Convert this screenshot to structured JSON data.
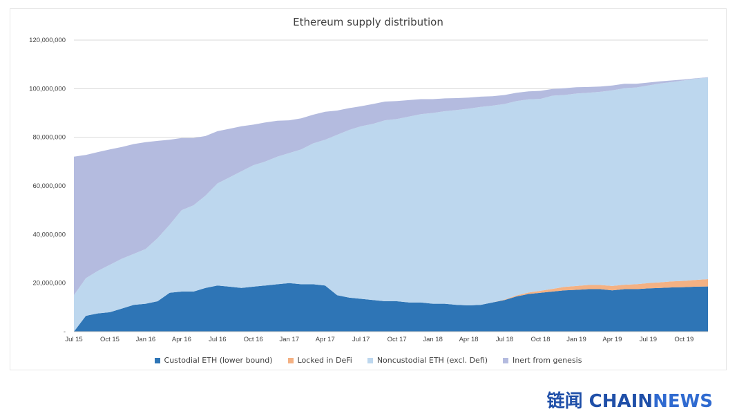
{
  "chart_data": {
    "type": "area",
    "stacked": true,
    "title": "Ethereum supply distribution",
    "xlabel": "",
    "ylabel": "",
    "ylim": [
      0,
      120000000
    ],
    "y_ticks": [
      "-",
      "20,000,000",
      "40,000,000",
      "60,000,000",
      "80,000,000",
      "100,000,000",
      "120,000,000"
    ],
    "x_ticks": [
      "Jul 15",
      "Oct 15",
      "Jan 16",
      "Apr 16",
      "Jul 16",
      "Oct 16",
      "Jan 17",
      "Apr 17",
      "Jul 17",
      "Oct 17",
      "Jan 18",
      "Apr 18",
      "Jul 18",
      "Oct 18",
      "Jan 19",
      "Apr 19",
      "Jul 19",
      "Oct 19"
    ],
    "grid": "horizontal",
    "legend_position": "bottom",
    "x": [
      "Jul 15",
      "Aug 15",
      "Sep 15",
      "Oct 15",
      "Nov 15",
      "Dec 15",
      "Jan 16",
      "Feb 16",
      "Mar 16",
      "Apr 16",
      "May 16",
      "Jun 16",
      "Jul 16",
      "Aug 16",
      "Sep 16",
      "Oct 16",
      "Nov 16",
      "Dec 16",
      "Jan 17",
      "Feb 17",
      "Mar 17",
      "Apr 17",
      "May 17",
      "Jun 17",
      "Jul 17",
      "Aug 17",
      "Sep 17",
      "Oct 17",
      "Nov 17",
      "Dec 17",
      "Jan 18",
      "Feb 18",
      "Mar 18",
      "Apr 18",
      "May 18",
      "Jun 18",
      "Jul 18",
      "Aug 18",
      "Sep 18",
      "Oct 18",
      "Nov 18",
      "Dec 18",
      "Jan 19",
      "Feb 19",
      "Mar 19",
      "Apr 19",
      "May 19",
      "Jun 19",
      "Jul 19",
      "Aug 19",
      "Sep 19",
      "Oct 19",
      "Nov 19",
      "Dec 19"
    ],
    "series": [
      {
        "name": "Custodial ETH (lower bound)",
        "color": "#2e75b6",
        "values": [
          0,
          6500000,
          7500000,
          8000000,
          9500000,
          11000000,
          11500000,
          12500000,
          16000000,
          16500000,
          16500000,
          18000000,
          19000000,
          18500000,
          18000000,
          18500000,
          19000000,
          19500000,
          20000000,
          19500000,
          19500000,
          19000000,
          15000000,
          14000000,
          13500000,
          13000000,
          12500000,
          12500000,
          12000000,
          12000000,
          11500000,
          11500000,
          11000000,
          10800000,
          11000000,
          12000000,
          13000000,
          14500000,
          15500000,
          16000000,
          16500000,
          17000000,
          17200000,
          17500000,
          17500000,
          17000000,
          17500000,
          17500000,
          17800000,
          18000000,
          18200000,
          18300000,
          18500000,
          18600000
        ]
      },
      {
        "name": "Locked in DeFi",
        "color": "#f4b183",
        "values": [
          0,
          0,
          0,
          0,
          0,
          0,
          0,
          0,
          0,
          0,
          0,
          0,
          0,
          0,
          0,
          0,
          0,
          0,
          0,
          0,
          0,
          0,
          0,
          0,
          0,
          0,
          0,
          0,
          0,
          0,
          0,
          0,
          0,
          0,
          0,
          0,
          200000,
          400000,
          600000,
          800000,
          1100000,
          1400000,
          1600000,
          1700000,
          1700000,
          1800000,
          1800000,
          2000000,
          2200000,
          2300000,
          2500000,
          2600000,
          2800000,
          3000000
        ]
      },
      {
        "name": "Noncustodial ETH (excl. Defi)",
        "color": "#bdd7ee",
        "values": [
          15000000,
          15500000,
          17500000,
          19500000,
          20500000,
          21000000,
          22500000,
          26000000,
          28000000,
          33500000,
          35500000,
          38000000,
          42000000,
          45000000,
          48000000,
          50000000,
          51000000,
          52500000,
          53500000,
          55500000,
          58000000,
          60000000,
          66000000,
          69000000,
          71000000,
          72500000,
          74500000,
          75000000,
          76500000,
          77500000,
          78500000,
          79200000,
          80200000,
          81000000,
          81500000,
          81000000,
          80500000,
          80000000,
          79500000,
          79000000,
          79500000,
          79000000,
          79200000,
          79100000,
          79500000,
          80500000,
          80900000,
          81000000,
          81300000,
          81800000,
          82000000,
          82500000,
          82800000,
          83000000
        ]
      },
      {
        "name": "Inert from genesis",
        "color": "#b4bbdf",
        "values": [
          57000000,
          50700000,
          48900000,
          47500000,
          46000000,
          45200000,
          44000000,
          40000000,
          35000000,
          29700000,
          27700000,
          24500000,
          21500000,
          20000000,
          18500000,
          16700000,
          16100000,
          14800000,
          13500000,
          12800000,
          11800000,
          11500000,
          10000000,
          9000000,
          8300000,
          8200000,
          7700000,
          7400000,
          6800000,
          6200000,
          5700000,
          5300000,
          4900000,
          4500000,
          4200000,
          3900000,
          3700000,
          3400000,
          3300000,
          3300000,
          2800000,
          2800000,
          2600000,
          2400000,
          2200000,
          2000000,
          1800000,
          1500000,
          1200000,
          900000,
          700000,
          400000,
          200000,
          100000
        ]
      }
    ]
  },
  "legend": [
    {
      "label": "Custodial ETH (lower bound)",
      "color": "#2e75b6"
    },
    {
      "label": "Locked in DeFi",
      "color": "#f4b183"
    },
    {
      "label": "Noncustodial ETH (excl. Defi)",
      "color": "#bdd7ee"
    },
    {
      "label": "Inert from genesis",
      "color": "#b4bbdf"
    }
  ],
  "watermark": {
    "cn": "链闻",
    "en_a": "CHAIN",
    "en_b": "NEWS"
  }
}
